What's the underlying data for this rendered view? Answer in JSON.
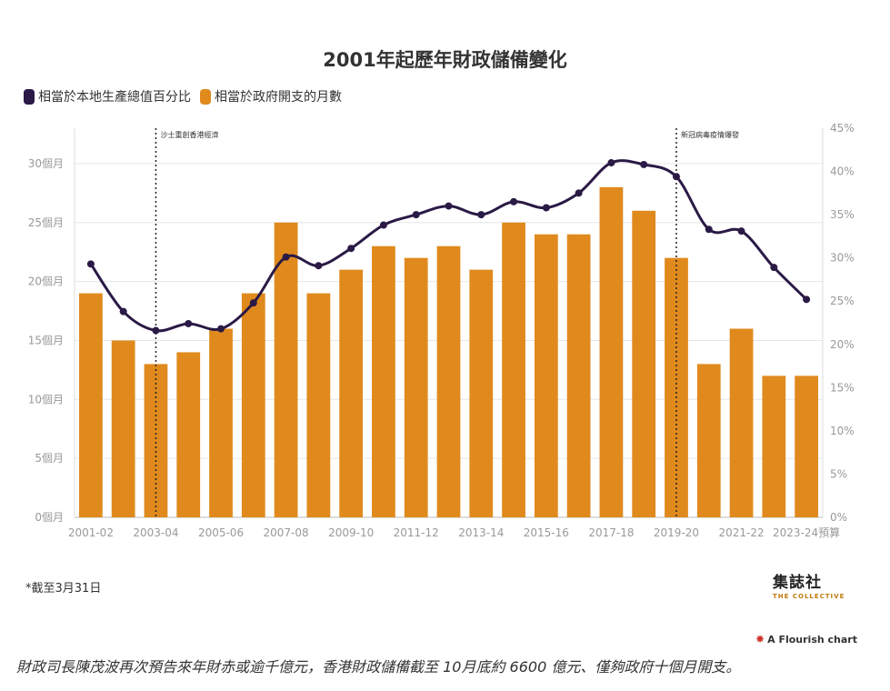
{
  "title": "2001年起歷年財政儲備變化",
  "legend": [
    {
      "label": "相當於本地生產總值百分比",
      "color": "#2a1a45"
    },
    {
      "label": "相當於政府開支的月數",
      "color": "#e08a1e"
    }
  ],
  "chart_data": {
    "type": "bar",
    "categories": [
      "2001-02",
      "2002-03",
      "2003-04",
      "2004-05",
      "2005-06",
      "2006-07",
      "2007-08",
      "2008-09",
      "2009-10",
      "2010-11",
      "2011-12",
      "2012-13",
      "2013-14",
      "2014-15",
      "2015-16",
      "2016-17",
      "2017-18",
      "2018-19",
      "2019-20",
      "2020-21",
      "2021-22",
      "2022-23",
      "2023-24預算"
    ],
    "x_tick_labels": [
      "2001-02",
      "2003-04",
      "2005-06",
      "2007-08",
      "2009-10",
      "2011-12",
      "2013-14",
      "2015-16",
      "2017-18",
      "2019-20",
      "2021-22",
      "2023-24預算"
    ],
    "series": [
      {
        "name": "相當於政府開支的月數",
        "type": "bar",
        "axis": "left",
        "color": "#e08a1e",
        "values": [
          19,
          15,
          13,
          14,
          16,
          19,
          25,
          19,
          21,
          23,
          22,
          23,
          21,
          25,
          24,
          24,
          28,
          26,
          22,
          13,
          16,
          12,
          12
        ]
      },
      {
        "name": "相當於本地生產總值百分比",
        "type": "line",
        "axis": "right",
        "color": "#2a1a45",
        "values": [
          29.3,
          23.8,
          21.6,
          22.4,
          21.8,
          24.8,
          30.1,
          29.1,
          31.1,
          33.8,
          35.0,
          36.0,
          35.0,
          36.5,
          35.8,
          37.5,
          41.0,
          40.8,
          39.4,
          33.3,
          33.1,
          28.9,
          25.2
        ]
      }
    ],
    "y_left": {
      "ylim": [
        0,
        33
      ],
      "ticks": [
        0,
        5,
        10,
        15,
        20,
        25,
        30
      ],
      "tick_labels": [
        "0個月",
        "5個月",
        "10個月",
        "15個月",
        "20個月",
        "25個月",
        "30個月"
      ]
    },
    "y_right": {
      "ylim": [
        0,
        45
      ],
      "ticks": [
        0,
        5,
        10,
        15,
        20,
        25,
        30,
        35,
        40,
        45
      ],
      "tick_labels": [
        "0%",
        "5%",
        "10%",
        "15%",
        "20%",
        "25%",
        "30%",
        "35%",
        "40%",
        "45%"
      ]
    },
    "annotations": [
      {
        "at_category": "2003-04",
        "label": "沙士重創香港經濟"
      },
      {
        "at_category": "2019-20",
        "label": "新冠病毒疫情爆發"
      }
    ],
    "grid": true,
    "legend_position": "top-left"
  },
  "footnote": "*截至3月31日",
  "brand": {
    "name": "集誌社",
    "sub": "THE COLLECTIVE"
  },
  "flourish": "A Flourish chart",
  "caption": "財政司長陳茂波再次預告來年財赤或逾千億元，香港財政儲備截至 10月底約 6600 億元、僅夠政府十個月開支。"
}
